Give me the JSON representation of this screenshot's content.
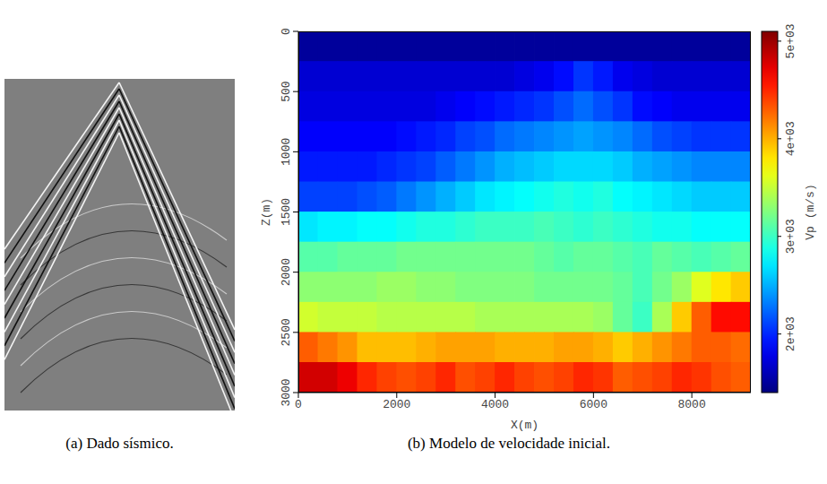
{
  "chart_data": [
    {
      "type": "image",
      "caption": "(a) Dado sísmico."
    },
    {
      "type": "heatmap",
      "caption": "(b) Modelo de velocidade inicial.",
      "x_label": "X(m)",
      "y_label": "Z(m)",
      "xlim": [
        0,
        9200
      ],
      "ylim": [
        3000,
        0
      ],
      "xticks": [
        0,
        2000,
        4000,
        6000,
        8000
      ],
      "yticks": [
        0,
        500,
        1000,
        1500,
        2000,
        2500,
        3000
      ],
      "x": [
        200,
        600,
        1000,
        1400,
        1800,
        2200,
        2600,
        3000,
        3400,
        3800,
        4200,
        4600,
        5000,
        5400,
        5800,
        6200,
        6600,
        7000,
        7400,
        7800,
        8200,
        8600,
        9000
      ],
      "y": [
        125,
        375,
        625,
        875,
        1125,
        1375,
        1625,
        1875,
        2125,
        2375,
        2625,
        2875
      ],
      "values": [
        [
          1500,
          1500,
          1500,
          1500,
          1500,
          1500,
          1500,
          1500,
          1500,
          1500,
          1500,
          1500,
          1500,
          1500,
          1500,
          1500,
          1500,
          1500,
          1500,
          1500,
          1500,
          1500,
          1500
        ],
        [
          1700,
          1700,
          1700,
          1700,
          1700,
          1700,
          1700,
          1700,
          1700,
          1700,
          1700,
          1750,
          1800,
          1900,
          2050,
          1950,
          1800,
          1750,
          1700,
          1700,
          1700,
          1700,
          1700
        ],
        [
          1750,
          1750,
          1750,
          1750,
          1750,
          1750,
          1750,
          1800,
          1850,
          1900,
          1950,
          2000,
          2050,
          2150,
          2250,
          2150,
          2050,
          1900,
          1850,
          1800,
          1800,
          1800,
          1800
        ],
        [
          1850,
          1850,
          1850,
          1850,
          1850,
          1900,
          1950,
          2000,
          2100,
          2150,
          2250,
          2300,
          2350,
          2400,
          2450,
          2400,
          2350,
          2250,
          2150,
          2100,
          2050,
          2050,
          2050
        ],
        [
          1950,
          1950,
          1950,
          1950,
          2000,
          2050,
          2100,
          2200,
          2300,
          2400,
          2500,
          2550,
          2600,
          2650,
          2650,
          2650,
          2600,
          2500,
          2450,
          2400,
          2350,
          2350,
          2350
        ],
        [
          2100,
          2100,
          2100,
          2150,
          2200,
          2300,
          2400,
          2500,
          2600,
          2700,
          2750,
          2800,
          2850,
          2900,
          2850,
          2900,
          2800,
          2750,
          2700,
          2650,
          2600,
          2600,
          2600
        ],
        [
          2700,
          2750,
          2750,
          2800,
          2800,
          2850,
          2900,
          2900,
          2950,
          3000,
          3000,
          3000,
          3050,
          3000,
          2950,
          3000,
          2950,
          2900,
          2850,
          2850,
          2800,
          2800,
          2800
        ],
        [
          3100,
          3100,
          3150,
          3150,
          3150,
          3200,
          3200,
          3200,
          3200,
          3200,
          3200,
          3200,
          3150,
          3100,
          3150,
          3150,
          3100,
          3050,
          3150,
          3100,
          3050,
          3100,
          3150
        ],
        [
          3300,
          3300,
          3300,
          3300,
          3350,
          3350,
          3300,
          3300,
          3250,
          3250,
          3250,
          3250,
          3200,
          3200,
          3200,
          3200,
          3150,
          3050,
          3200,
          3350,
          3600,
          3800,
          3900
        ],
        [
          3550,
          3500,
          3500,
          3500,
          3450,
          3450,
          3450,
          3450,
          3450,
          3400,
          3400,
          3400,
          3400,
          3400,
          3400,
          3350,
          3150,
          3000,
          3400,
          3900,
          4300,
          4600,
          4600
        ],
        [
          4300,
          4200,
          4100,
          3950,
          3950,
          3950,
          4000,
          4050,
          4050,
          4050,
          4000,
          4000,
          4000,
          4050,
          4050,
          4000,
          3900,
          4000,
          4100,
          4200,
          4300,
          4300,
          4250
        ],
        [
          4800,
          4800,
          4700,
          4500,
          4400,
          4350,
          4400,
          4500,
          4350,
          4400,
          4500,
          4400,
          4350,
          4400,
          4500,
          4450,
          4300,
          4350,
          4400,
          4500,
          4450,
          4350,
          4300
        ]
      ],
      "colorbar": {
        "label": "Vp (m/s)",
        "range": [
          1400,
          5100
        ],
        "ticks": [
          {
            "value": 2000,
            "label": "2e+03"
          },
          {
            "value": 3000,
            "label": "3e+03"
          },
          {
            "value": 4000,
            "label": "4e+03"
          },
          {
            "value": 5000,
            "label": "5e+03"
          }
        ]
      }
    }
  ]
}
